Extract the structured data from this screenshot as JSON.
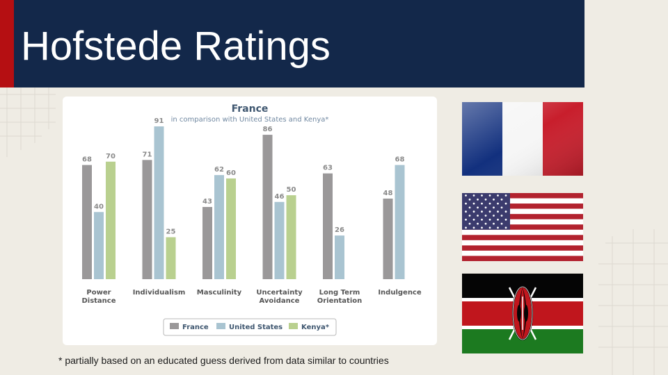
{
  "slide": {
    "title": "Hofstede Ratings",
    "footnote": "* partially based on an educated guess derived from data similar to countries"
  },
  "colors": {
    "header_bg": "#13284a",
    "header_accent": "#b50f12",
    "background": "#efece4",
    "france": "#9a9899",
    "united_states": "#a9c4d1",
    "kenya": "#b9d08f"
  },
  "flags": [
    {
      "country": "France",
      "icon": "france-flag-icon"
    },
    {
      "country": "United States",
      "icon": "usa-flag-icon"
    },
    {
      "country": "Kenya",
      "icon": "kenya-flag-icon"
    }
  ],
  "chart_data": {
    "type": "bar",
    "title": "France",
    "subtitle": "in comparison with United States and Kenya*",
    "xlabel": "",
    "ylabel": "",
    "ylim": [
      0,
      100
    ],
    "grid": false,
    "legend_position": "bottom",
    "categories": [
      [
        "Power",
        "Distance"
      ],
      [
        "Individualism"
      ],
      [
        "Masculinity"
      ],
      [
        "Uncertainty",
        "Avoidance"
      ],
      [
        "Long Term",
        "Orientation"
      ],
      [
        "Indulgence"
      ]
    ],
    "series": [
      {
        "name": "France",
        "color": "#9a9899",
        "values": [
          68,
          71,
          43,
          86,
          63,
          48
        ]
      },
      {
        "name": "United States",
        "color": "#a9c4d1",
        "values": [
          40,
          91,
          62,
          46,
          26,
          68
        ]
      },
      {
        "name": "Kenya*",
        "color": "#b9d08f",
        "values": [
          70,
          25,
          60,
          50,
          null,
          null
        ]
      }
    ]
  }
}
